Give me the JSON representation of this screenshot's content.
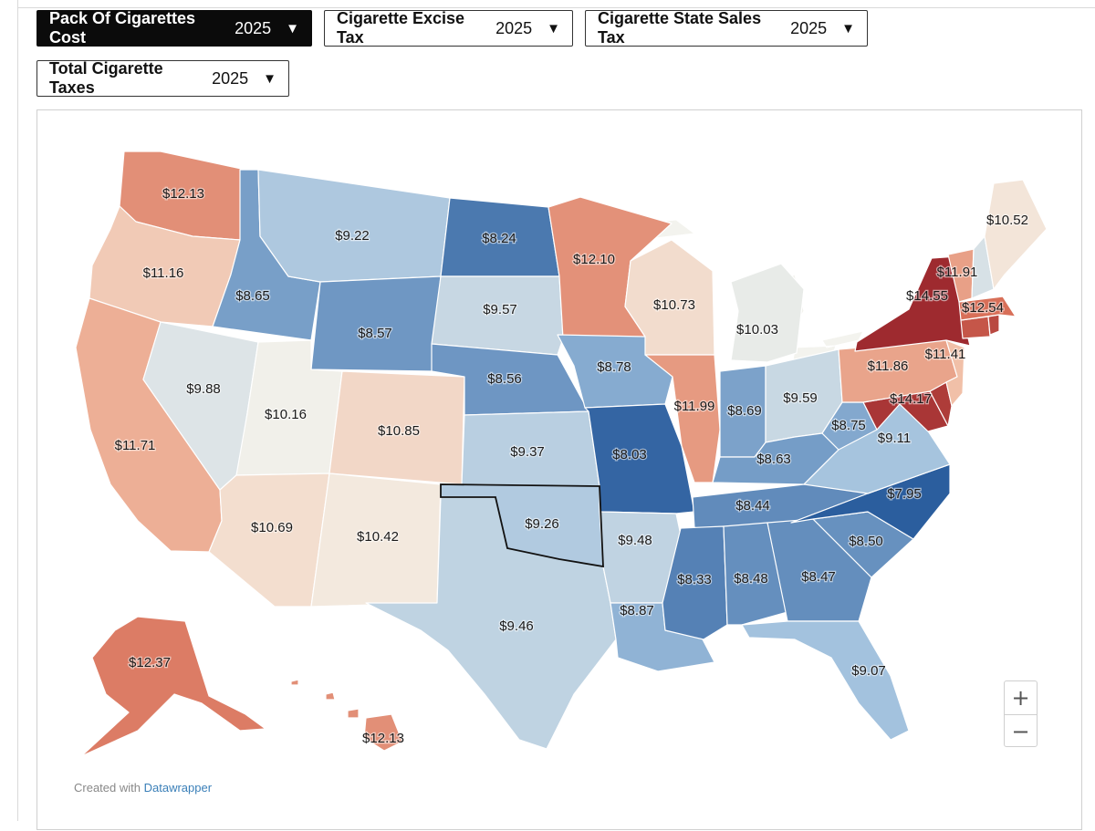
{
  "filters": [
    {
      "label": "Pack Of Cigarettes Cost",
      "year": "2025",
      "caret": "▼",
      "active": true
    },
    {
      "label": "Cigarette Excise Tax",
      "year": "2025",
      "caret": "▼",
      "active": false
    },
    {
      "label": "Cigarette State Sales Tax",
      "year": "2025",
      "caret": "▼",
      "active": false
    },
    {
      "label": "Total Cigarette Taxes",
      "year": "2025",
      "caret": "▼",
      "active": false
    }
  ],
  "map": {
    "highlighted_state": "OK",
    "color_scale": {
      "low": "#2b5e9e",
      "mid": "#f4f2ea",
      "high": "#9e2a2f"
    },
    "states": [
      {
        "id": "WA",
        "value": 12.13,
        "label": "$12.13"
      },
      {
        "id": "OR",
        "value": 11.16,
        "label": "$11.16"
      },
      {
        "id": "CA",
        "value": 11.71,
        "label": "$11.71"
      },
      {
        "id": "ID",
        "value": 8.65,
        "label": "$8.65"
      },
      {
        "id": "NV",
        "value": 9.88,
        "label": "$9.88"
      },
      {
        "id": "MT",
        "value": 9.22,
        "label": "$9.22"
      },
      {
        "id": "WY",
        "value": 8.57,
        "label": "$8.57"
      },
      {
        "id": "UT",
        "value": 10.16,
        "label": "$10.16"
      },
      {
        "id": "AZ",
        "value": 10.69,
        "label": "$10.69"
      },
      {
        "id": "CO",
        "value": 10.85,
        "label": "$10.85"
      },
      {
        "id": "NM",
        "value": 10.42,
        "label": "$10.42"
      },
      {
        "id": "ND",
        "value": 8.24,
        "label": "$8.24"
      },
      {
        "id": "SD",
        "value": 9.57,
        "label": "$9.57"
      },
      {
        "id": "NE",
        "value": 8.56,
        "label": "$8.56"
      },
      {
        "id": "KS",
        "value": 9.37,
        "label": "$9.37"
      },
      {
        "id": "OK",
        "value": 9.26,
        "label": "$9.26"
      },
      {
        "id": "TX",
        "value": 9.46,
        "label": "$9.46"
      },
      {
        "id": "MN",
        "value": 12.1,
        "label": "$12.10"
      },
      {
        "id": "IA",
        "value": 8.78,
        "label": "$8.78"
      },
      {
        "id": "MO",
        "value": 8.03,
        "label": "$8.03"
      },
      {
        "id": "AR",
        "value": 9.48,
        "label": "$9.48"
      },
      {
        "id": "LA",
        "value": 8.87,
        "label": "$8.87"
      },
      {
        "id": "WI",
        "value": 10.73,
        "label": "$10.73"
      },
      {
        "id": "IL",
        "value": 11.99,
        "label": "$11.99"
      },
      {
        "id": "MI",
        "value": 10.03,
        "label": "$10.03"
      },
      {
        "id": "IN",
        "value": 8.69,
        "label": "$8.69"
      },
      {
        "id": "OH",
        "value": 9.59,
        "label": "$9.59"
      },
      {
        "id": "KY",
        "value": 8.63,
        "label": "$8.63"
      },
      {
        "id": "TN",
        "value": 8.44,
        "label": "$8.44"
      },
      {
        "id": "MS",
        "value": 8.33,
        "label": "$8.33"
      },
      {
        "id": "AL",
        "value": 8.48,
        "label": "$8.48"
      },
      {
        "id": "GA",
        "value": 8.47,
        "label": "$8.47"
      },
      {
        "id": "FL",
        "value": 9.07,
        "label": "$9.07"
      },
      {
        "id": "SC",
        "value": 8.5,
        "label": "$8.50"
      },
      {
        "id": "NC",
        "value": 7.95,
        "label": "$7.95"
      },
      {
        "id": "VA",
        "value": 9.11,
        "label": "$9.11"
      },
      {
        "id": "WV",
        "value": 8.75,
        "label": "$8.75"
      },
      {
        "id": "MD",
        "value": 14.17,
        "label": "$14.17"
      },
      {
        "id": "DE",
        "value": null,
        "label": ""
      },
      {
        "id": "PA",
        "value": 11.86,
        "label": "$11.86"
      },
      {
        "id": "NJ",
        "value": 11.41,
        "label": "$11.41"
      },
      {
        "id": "NY",
        "value": 14.55,
        "label": "$14.55"
      },
      {
        "id": "CT",
        "value": null,
        "label": ""
      },
      {
        "id": "RI",
        "value": null,
        "label": ""
      },
      {
        "id": "MA",
        "value": 12.54,
        "label": "$12.54"
      },
      {
        "id": "VT",
        "value": 11.91,
        "label": "$11.91"
      },
      {
        "id": "NH",
        "value": null,
        "label": ""
      },
      {
        "id": "ME",
        "value": 10.52,
        "label": "$10.52"
      },
      {
        "id": "AK",
        "value": 12.37,
        "label": "$12.37"
      },
      {
        "id": "HI",
        "value": 12.13,
        "label": "$12.13"
      }
    ]
  },
  "zoom": {
    "in_label": "+",
    "out_label": "−"
  },
  "credit": {
    "prefix": "Created with",
    "link": "Datawrapper"
  }
}
